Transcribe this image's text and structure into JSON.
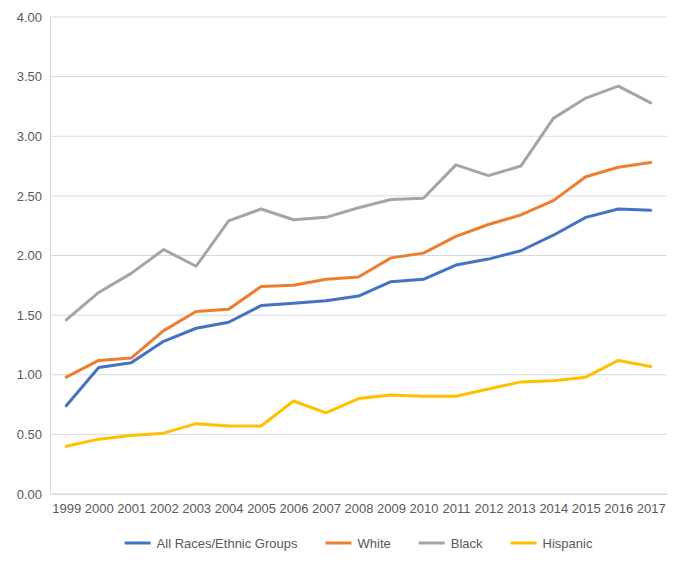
{
  "chart_data": {
    "type": "line",
    "categories": [
      "1999",
      "2000",
      "2001",
      "2002",
      "2003",
      "2004",
      "2005",
      "2006",
      "2007",
      "2008",
      "2009",
      "2010",
      "2011",
      "2012",
      "2013",
      "2014",
      "2015",
      "2016",
      "2017"
    ],
    "series": [
      {
        "name": "All Races/Ethnic Groups",
        "color": "#4472c4",
        "values": [
          0.74,
          1.06,
          1.1,
          1.28,
          1.39,
          1.44,
          1.58,
          1.6,
          1.62,
          1.66,
          1.78,
          1.8,
          1.92,
          1.97,
          2.04,
          2.17,
          2.32,
          2.39,
          2.38
        ]
      },
      {
        "name": "White",
        "color": "#ed7d31",
        "values": [
          0.98,
          1.12,
          1.14,
          1.37,
          1.53,
          1.55,
          1.74,
          1.75,
          1.8,
          1.82,
          1.98,
          2.02,
          2.16,
          2.26,
          2.34,
          2.46,
          2.66,
          2.74,
          2.78
        ]
      },
      {
        "name": "Black",
        "color": "#a5a5a5",
        "values": [
          1.46,
          1.69,
          1.85,
          2.05,
          1.91,
          2.29,
          2.39,
          2.3,
          2.32,
          2.4,
          2.47,
          2.48,
          2.76,
          2.67,
          2.75,
          3.15,
          3.32,
          3.42,
          3.28
        ]
      },
      {
        "name": "Hispanic",
        "color": "#ffc000",
        "values": [
          0.4,
          0.46,
          0.49,
          0.51,
          0.59,
          0.57,
          0.57,
          0.78,
          0.68,
          0.8,
          0.83,
          0.82,
          0.82,
          0.88,
          0.94,
          0.95,
          0.98,
          1.12,
          1.07
        ]
      }
    ],
    "ylim": [
      0,
      4
    ],
    "yticks": [
      {
        "value": 0,
        "label": "0.00"
      },
      {
        "value": 0.5,
        "label": "0.50"
      },
      {
        "value": 1,
        "label": "1.00"
      },
      {
        "value": 1.5,
        "label": "1.50"
      },
      {
        "value": 2,
        "label": "2.00"
      },
      {
        "value": 2.5,
        "label": "2.50"
      },
      {
        "value": 3,
        "label": "3.00"
      },
      {
        "value": 3.5,
        "label": "3.50"
      },
      {
        "value": 4,
        "label": "4.00"
      }
    ],
    "grid": true,
    "legend": "bottom"
  }
}
